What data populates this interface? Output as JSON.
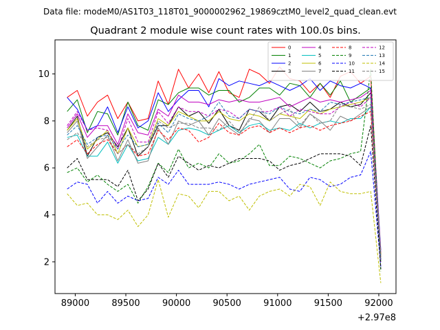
{
  "suptitle": "Data file: modeM0/AS1T03_118T01_9000002962_19869cztM0_level2_quad_clean.evt",
  "chart_data": {
    "type": "line",
    "title": "Quadrant 2 module wise count rates with 100.0s bins.",
    "xlabel": "",
    "ylabel": "",
    "x_offset_label": "+2.97e8",
    "xlim": [
      88800,
      92170
    ],
    "ylim": [
      0.65,
      11.45
    ],
    "xticks": [
      89000,
      89500,
      90000,
      90500,
      91000,
      91500,
      92000
    ],
    "xtick_labels": [
      "89000",
      "89500",
      "90000",
      "90500",
      "91000",
      "91500",
      "92000"
    ],
    "yticks": [
      2,
      4,
      6,
      8,
      10
    ],
    "ytick_labels": [
      "2",
      "4",
      "6",
      "8",
      "10"
    ],
    "x": [
      88920,
      89020,
      89120,
      89220,
      89320,
      89420,
      89520,
      89620,
      89720,
      89820,
      89920,
      90020,
      90120,
      90220,
      90320,
      90420,
      90520,
      90620,
      90720,
      90820,
      90920,
      91020,
      91120,
      91220,
      91320,
      91420,
      91520,
      91620,
      91720,
      91820,
      91920,
      92020
    ],
    "legend_location": "upper right",
    "legend_columns": 4,
    "series": [
      {
        "name": "0",
        "color": "#ff0000",
        "dash": "solid",
        "values": [
          9.0,
          9.3,
          8.2,
          8.8,
          9.1,
          8.1,
          8.8,
          8.0,
          8.1,
          9.7,
          8.7,
          10.2,
          9.4,
          10.0,
          9.2,
          10.1,
          9.2,
          9.0,
          10.2,
          10.0,
          9.6,
          10.3,
          9.8,
          9.7,
          9.2,
          9.6,
          9.0,
          9.9,
          10.1,
          9.6,
          9.9,
          2.2
        ]
      },
      {
        "name": "1",
        "color": "#008000",
        "dash": "solid",
        "values": [
          8.4,
          8.9,
          7.5,
          8.4,
          8.3,
          7.4,
          8.8,
          7.8,
          7.6,
          8.9,
          8.7,
          9.2,
          9.4,
          9.4,
          9.1,
          9.3,
          9.3,
          8.8,
          9.0,
          9.4,
          9.4,
          9.1,
          9.6,
          9.5,
          9.0,
          9.6,
          9.1,
          9.7,
          8.8,
          9.1,
          9.4,
          2.0
        ]
      },
      {
        "name": "2",
        "color": "#0000ff",
        "dash": "solid",
        "values": [
          9.0,
          8.5,
          7.6,
          7.8,
          8.6,
          7.5,
          8.6,
          7.7,
          8.0,
          9.2,
          8.4,
          8.9,
          9.3,
          9.3,
          8.6,
          9.8,
          9.5,
          9.7,
          9.6,
          9.5,
          9.7,
          9.5,
          9.3,
          9.5,
          9.8,
          9.3,
          9.7,
          9.5,
          9.4,
          9.6,
          9.4,
          2.5
        ]
      },
      {
        "name": "3",
        "color": "#000000",
        "dash": "solid",
        "values": [
          7.6,
          8.2,
          6.5,
          7.3,
          7.5,
          6.9,
          7.7,
          6.5,
          6.9,
          7.8,
          7.8,
          8.6,
          8.2,
          8.4,
          7.9,
          8.5,
          7.8,
          7.6,
          8.5,
          8.4,
          8.0,
          8.6,
          8.7,
          8.4,
          8.8,
          8.4,
          8.5,
          8.8,
          8.6,
          8.7,
          9.2,
          2.3
        ]
      },
      {
        "name": "4",
        "color": "#bf00bf",
        "dash": "solid",
        "values": [
          7.7,
          8.3,
          7.3,
          7.8,
          7.8,
          7.0,
          8.3,
          7.5,
          7.4,
          8.5,
          8.2,
          9.1,
          8.8,
          8.8,
          8.7,
          8.9,
          8.8,
          8.9,
          8.8,
          8.8,
          8.9,
          9.0,
          8.6,
          8.8,
          9.0,
          8.8,
          8.9,
          8.8,
          8.9,
          9.0,
          9.3,
          2.4
        ]
      },
      {
        "name": "5",
        "color": "#00bfbf",
        "dash": "solid",
        "values": [
          7.3,
          7.4,
          6.5,
          6.5,
          7.1,
          6.2,
          7.0,
          6.3,
          6.4,
          7.3,
          7.0,
          7.6,
          7.7,
          7.6,
          7.4,
          7.6,
          7.8,
          7.5,
          7.8,
          7.9,
          7.6,
          7.7,
          7.6,
          7.9,
          7.7,
          7.9,
          8.0,
          7.9,
          8.1,
          8.1,
          8.6,
          2.1
        ]
      },
      {
        "name": "6",
        "color": "#bfbf00",
        "dash": "solid",
        "values": [
          7.6,
          8.1,
          6.8,
          7.2,
          7.6,
          6.6,
          7.7,
          6.9,
          7.0,
          8.1,
          7.8,
          8.4,
          8.2,
          8.0,
          8.0,
          8.4,
          8.1,
          8.0,
          8.3,
          8.2,
          8.0,
          8.3,
          8.2,
          8.1,
          8.5,
          8.3,
          8.5,
          8.6,
          8.7,
          8.8,
          9.0,
          2.3
        ]
      },
      {
        "name": "7",
        "color": "#808080",
        "dash": "solid",
        "values": [
          7.5,
          8.0,
          6.4,
          6.9,
          7.4,
          6.3,
          7.2,
          6.2,
          6.3,
          7.7,
          7.0,
          8.0,
          7.8,
          8.0,
          7.4,
          8.1,
          7.7,
          7.4,
          8.1,
          8.0,
          7.5,
          8.1,
          8.1,
          7.7,
          8.3,
          8.0,
          7.6,
          8.2,
          8.0,
          8.3,
          8.6,
          2.2
        ]
      },
      {
        "name": "8",
        "color": "#ff0000",
        "dash": "dashed",
        "values": [
          6.9,
          7.2,
          6.6,
          7.0,
          7.2,
          6.6,
          7.0,
          6.5,
          6.6,
          7.6,
          7.2,
          7.7,
          7.6,
          7.1,
          7.3,
          7.9,
          7.5,
          7.4,
          7.7,
          7.8,
          7.5,
          7.7,
          7.5,
          7.7,
          7.8,
          7.6,
          7.8,
          7.9,
          8.0,
          8.2,
          8.4,
          2.1
        ]
      },
      {
        "name": "9",
        "color": "#008000",
        "dash": "dashed",
        "values": [
          5.8,
          6.0,
          5.4,
          5.7,
          5.3,
          5.0,
          5.3,
          4.5,
          5.2,
          6.2,
          5.8,
          6.8,
          6.0,
          6.2,
          6.0,
          6.6,
          6.2,
          6.3,
          6.6,
          7.0,
          6.1,
          6.1,
          6.5,
          6.4,
          6.2,
          6.0,
          6.3,
          6.4,
          6.6,
          6.7,
          10.2,
          1.6
        ]
      },
      {
        "name": "10",
        "color": "#0000ff",
        "dash": "dashed",
        "values": [
          5.1,
          5.4,
          5.3,
          4.5,
          5.0,
          4.5,
          4.8,
          4.6,
          4.7,
          5.6,
          5.3,
          5.9,
          5.3,
          5.3,
          5.3,
          5.4,
          5.3,
          5.1,
          5.3,
          5.4,
          5.5,
          5.6,
          5.1,
          5.0,
          5.6,
          5.5,
          5.2,
          5.3,
          5.6,
          5.7,
          6.7,
          1.8
        ]
      },
      {
        "name": "11",
        "color": "#000000",
        "dash": "dashed",
        "values": [
          6.0,
          6.4,
          5.5,
          5.5,
          5.5,
          5.2,
          5.9,
          4.6,
          5.1,
          6.2,
          5.6,
          6.5,
          6.2,
          5.9,
          6.1,
          6.0,
          6.2,
          6.4,
          6.4,
          6.4,
          6.3,
          5.9,
          6.1,
          6.2,
          6.4,
          6.6,
          6.6,
          6.6,
          6.5,
          6.1,
          7.8,
          1.7
        ]
      },
      {
        "name": "12",
        "color": "#bf00bf",
        "dash": "dashed",
        "values": [
          7.8,
          8.4,
          7.6,
          7.7,
          7.6,
          6.8,
          8.1,
          7.1,
          7.1,
          8.4,
          7.9,
          8.6,
          8.4,
          8.4,
          8.2,
          8.5,
          8.4,
          8.1,
          8.5,
          8.4,
          8.4,
          8.6,
          8.2,
          8.5,
          8.4,
          8.3,
          8.3,
          8.6,
          8.8,
          8.6,
          9.0,
          2.0
        ]
      },
      {
        "name": "13",
        "color": "#1f77b4",
        "dash": "dashed",
        "values": [
          7.4,
          7.8,
          7.0,
          7.3,
          7.4,
          6.8,
          7.4,
          6.9,
          7.0,
          7.9,
          7.5,
          8.3,
          8.1,
          8.0,
          8.2,
          8.8,
          8.2,
          8.1,
          8.5,
          8.4,
          8.3,
          8.6,
          8.4,
          8.3,
          8.5,
          8.4,
          8.8,
          8.7,
          8.8,
          8.9,
          9.0,
          2.1
        ]
      },
      {
        "name": "14",
        "color": "#bfbf00",
        "dash": "dashed",
        "values": [
          4.9,
          4.4,
          4.5,
          4.0,
          4.0,
          3.8,
          4.2,
          3.5,
          4.0,
          5.5,
          3.9,
          4.9,
          4.8,
          4.3,
          5.0,
          5.0,
          4.6,
          4.8,
          4.2,
          4.8,
          5.0,
          5.1,
          4.8,
          5.3,
          5.2,
          4.4,
          5.4,
          5.0,
          4.9,
          4.9,
          5.0,
          1.1
        ]
      },
      {
        "name": "15",
        "color": "#808080",
        "dash": "dashed",
        "values": [
          7.2,
          7.5,
          6.9,
          7.2,
          7.3,
          6.6,
          7.0,
          6.6,
          6.9,
          8.0,
          7.7,
          7.9,
          7.9,
          7.7,
          7.7,
          7.6,
          8.0,
          7.5,
          8.0,
          8.6,
          8.0,
          8.3,
          8.5,
          7.8,
          8.3,
          7.9,
          8.0,
          8.7,
          8.6,
          8.5,
          8.7,
          2.1
        ]
      }
    ]
  }
}
